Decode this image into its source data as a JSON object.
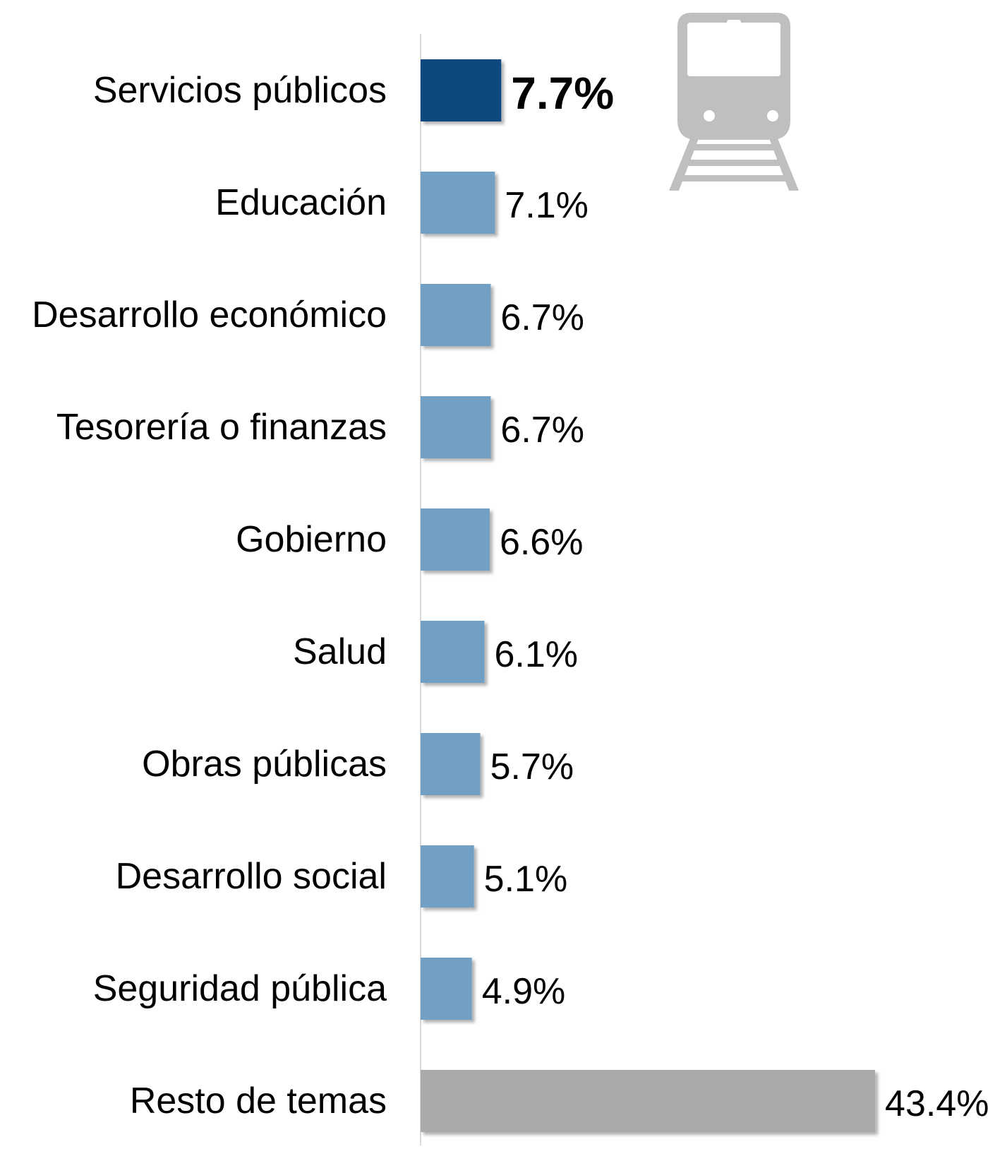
{
  "chart_data": {
    "type": "bar",
    "orientation": "horizontal",
    "title": "",
    "xlabel": "",
    "ylabel": "",
    "categories": [
      "Servicios públicos",
      "Educación",
      "Desarrollo económico",
      "Tesorería o finanzas",
      "Gobierno",
      "Salud",
      "Obras públicas",
      "Desarrollo social",
      "Seguridad pública",
      "Resto de temas"
    ],
    "values": [
      7.7,
      7.1,
      6.7,
      6.7,
      6.6,
      6.1,
      5.7,
      5.1,
      4.9,
      43.4
    ],
    "value_labels": [
      "7.7%",
      "7.1%",
      "6.7%",
      "6.7%",
      "6.6%",
      "6.1%",
      "5.7%",
      "5.1%",
      "4.9%",
      "43.4%"
    ],
    "unit": "%",
    "xlim": [
      0,
      45
    ],
    "grid": false,
    "legend": "none",
    "highlight_index": 0,
    "colors": {
      "highlight": "#0b497e",
      "default": "#729fc4",
      "rest": "#a9a9a9",
      "axis": "#d9d9d9",
      "text": "#000000",
      "icon": "#bfbfbf"
    },
    "icon": "train-icon"
  }
}
